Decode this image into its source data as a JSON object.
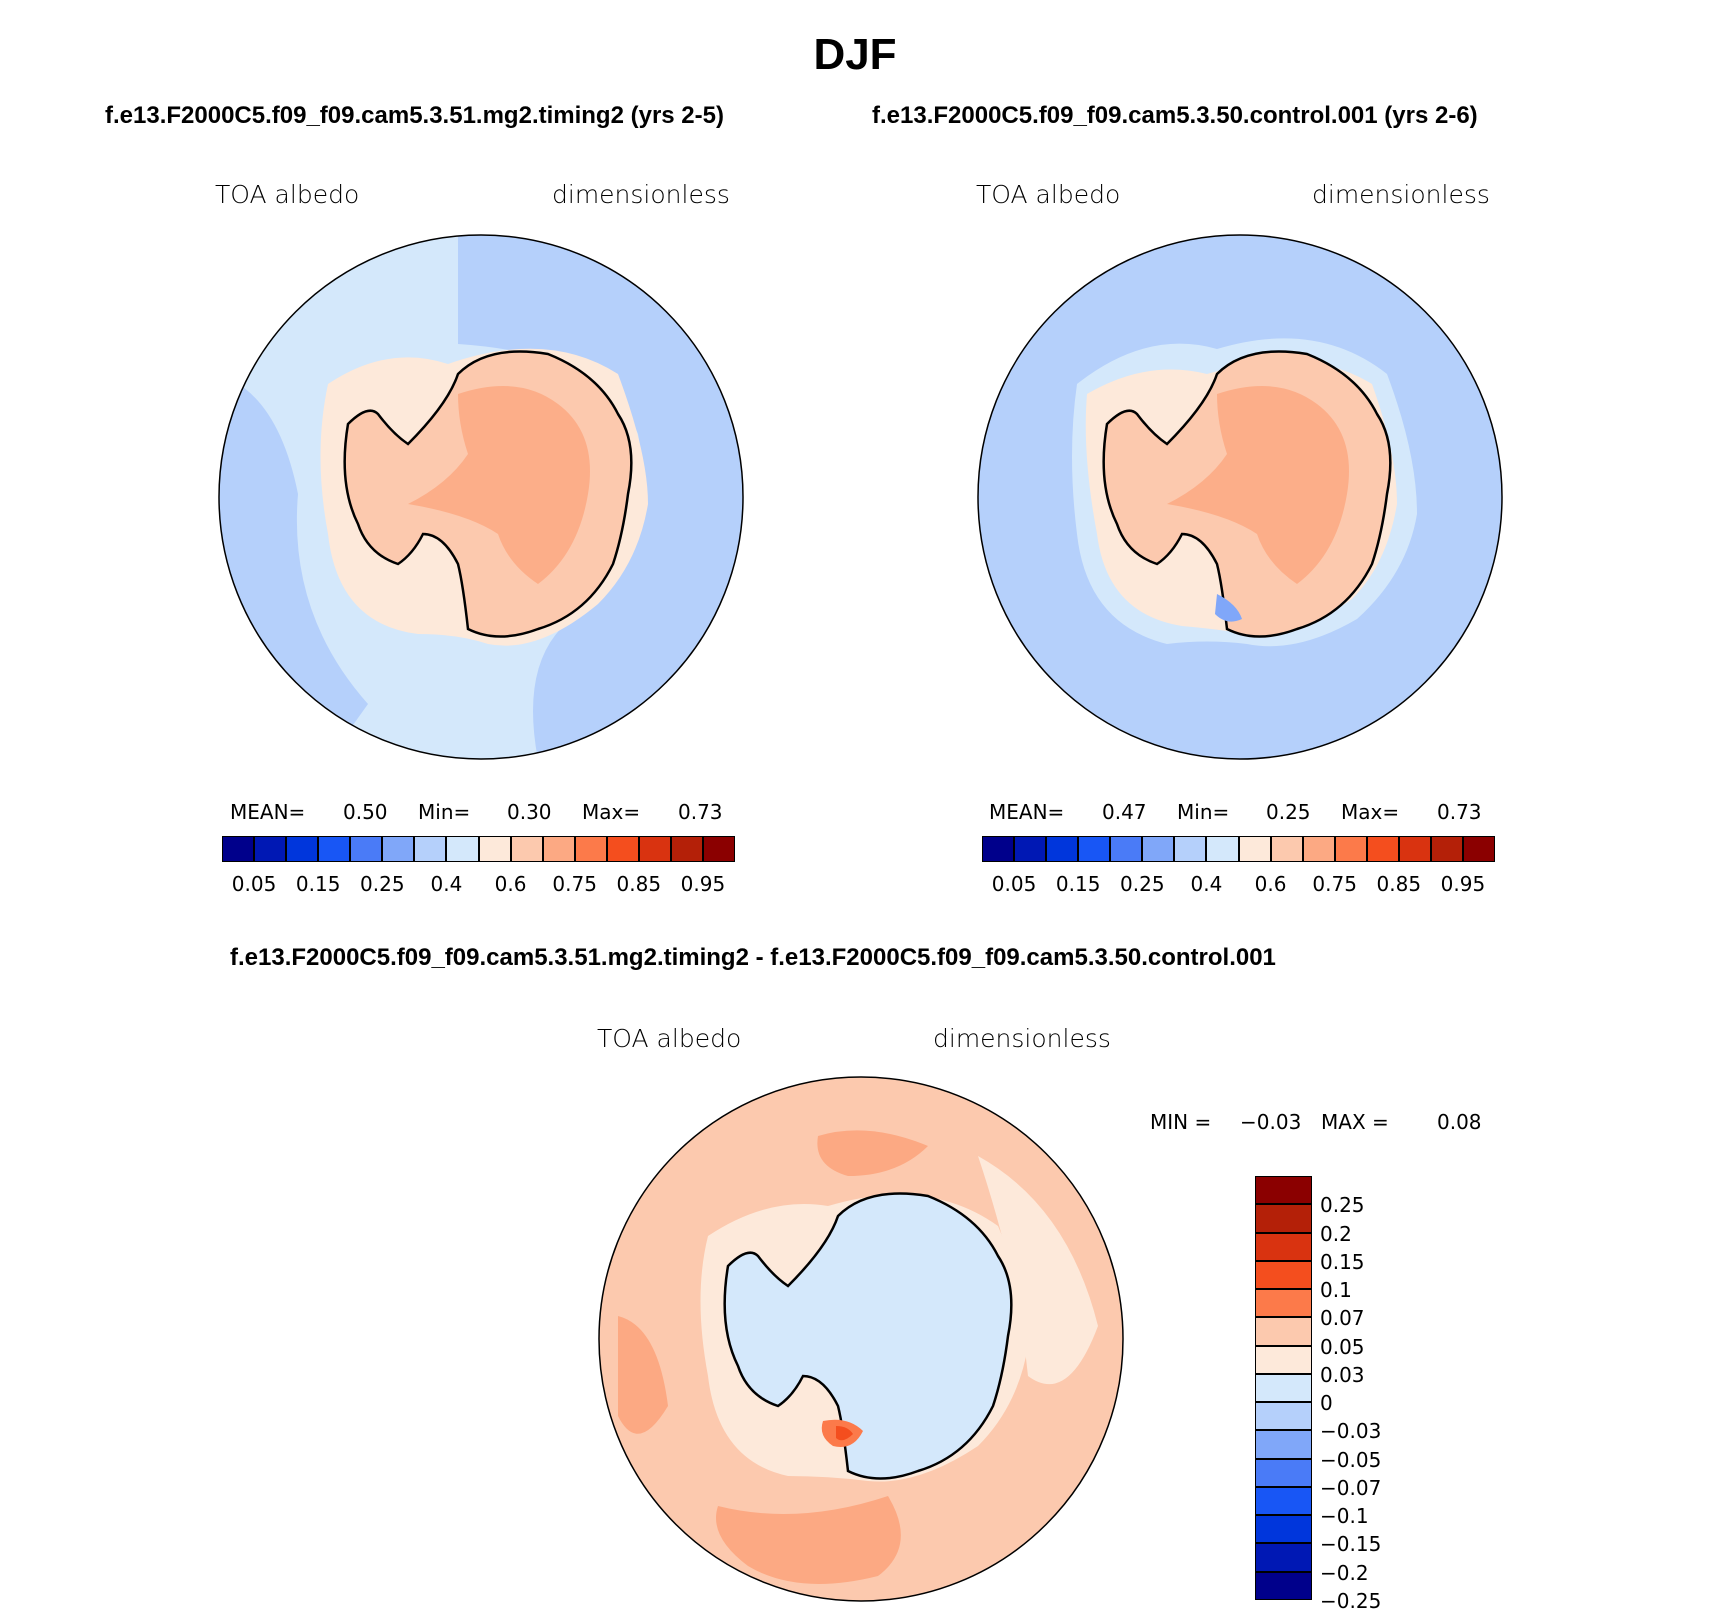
{
  "title": "DJF",
  "panels": [
    {
      "case": "f.e13.F2000C5.f09_f09.cam5.3.51.mg2.timing2 (yrs 2-5)",
      "variable": "TOA albedo",
      "units": "dimensionless",
      "mean_label": "MEAN=",
      "mean": "0.50",
      "min_label": "Min=",
      "min": "0.30",
      "max_label": "Max=",
      "max": "0.73",
      "ocean_fill": "#d4e8fb"
    },
    {
      "case": "f.e13.F2000C5.f09_f09.cam5.3.50.control.001 (yrs 2-6)",
      "variable": "TOA albedo",
      "units": "dimensionless",
      "mean_label": "MEAN=",
      "mean": "0.47",
      "min_label": "Min=",
      "min": "0.25",
      "max_label": "Max=",
      "max": "0.73",
      "ocean_fill": "#b5d0fb"
    }
  ],
  "abs_colorbar": {
    "colors": [
      "#00008b",
      "#0018b4",
      "#0036dc",
      "#1856f5",
      "#4a7bf7",
      "#80a7f9",
      "#b5d0fb",
      "#d4e8fb",
      "#fde9da",
      "#fcc9ae",
      "#fca983",
      "#fc7a4a",
      "#f44e1e",
      "#d93310",
      "#b42008",
      "#8b0000"
    ],
    "ticks": [
      "0.05",
      "0.15",
      "0.25",
      "0.4",
      "0.6",
      "0.75",
      "0.85",
      "0.95"
    ]
  },
  "diff": {
    "case": "f.e13.F2000C5.f09_f09.cam5.3.51.mg2.timing2 - f.e13.F2000C5.f09_f09.cam5.3.50.control.001",
    "variable": "TOA albedo",
    "units": "dimensionless",
    "min_label": "MIN =",
    "min": "−0.03",
    "max_label": "MAX =",
    "max": "0.08"
  },
  "diff_colorbar": {
    "colors": [
      "#8b0000",
      "#b42008",
      "#d93310",
      "#f44e1e",
      "#fc7a4a",
      "#fcc9ae",
      "#fde9da",
      "#d4e8fb",
      "#b5d0fb",
      "#80a7f9",
      "#4a7bf7",
      "#1856f5",
      "#0036dc",
      "#0018b4",
      "#00008b"
    ],
    "ticks": [
      "0.25",
      "0.2",
      "0.15",
      "0.1",
      "0.07",
      "0.05",
      "0.03",
      "0",
      "−0.03",
      "−0.05",
      "−0.07",
      "−0.1",
      "−0.15",
      "−0.2",
      "−0.25"
    ]
  }
}
